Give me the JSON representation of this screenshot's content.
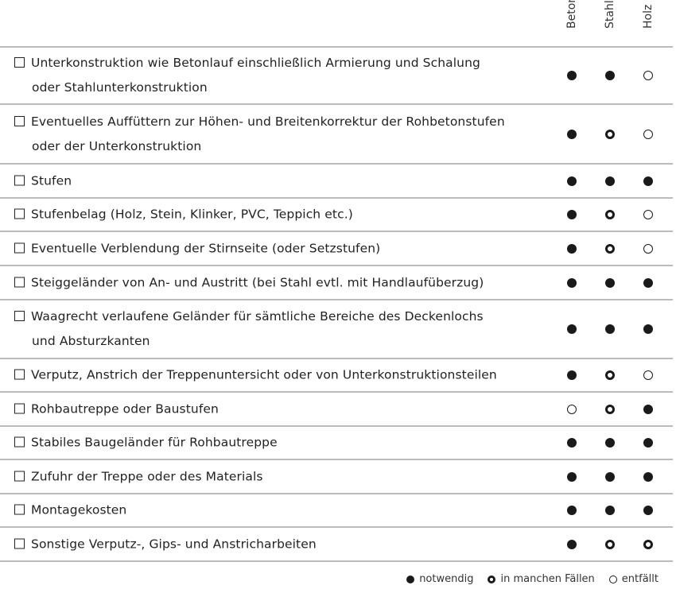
{
  "columns": [
    "Beton",
    "Stahl",
    "Holz"
  ],
  "colors": {
    "mark": "#1a1a1a",
    "rule": "#bbbbbb"
  },
  "rows": [
    {
      "lines": [
        "Unterkonstruktion wie Betonlauf einschließlich Armierung und Schalung",
        "oder Stahlunterkonstruktion"
      ],
      "marks": [
        "notwendig",
        "notwendig",
        "entfällt"
      ]
    },
    {
      "lines": [
        "Eventuelles Auffüttern zur Höhen- und Breitenkorrektur der Rohbetonstufen",
        "oder der Unterkonstruktion"
      ],
      "marks": [
        "notwendig",
        "in manchen Fällen",
        "entfällt"
      ]
    },
    {
      "lines": [
        "Stufen"
      ],
      "marks": [
        "notwendig",
        "notwendig",
        "notwendig"
      ]
    },
    {
      "lines": [
        "Stufenbelag (Holz, Stein, Klinker, PVC, Teppich etc.)"
      ],
      "marks": [
        "notwendig",
        "in manchen Fällen",
        "entfällt"
      ]
    },
    {
      "lines": [
        "Eventuelle Verblendung der Stirnseite (oder Setzstufen)"
      ],
      "marks": [
        "notwendig",
        "in manchen Fällen",
        "entfällt"
      ]
    },
    {
      "lines": [
        "Steiggeländer von An- und Austritt (bei Stahl evtl. mit Handlaufüberzug)"
      ],
      "marks": [
        "notwendig",
        "notwendig",
        "notwendig"
      ]
    },
    {
      "lines": [
        "Waagrecht verlaufene Geländer für sämtliche Bereiche des Deckenlochs",
        "und Absturzkanten"
      ],
      "marks": [
        "notwendig",
        "notwendig",
        "notwendig"
      ]
    },
    {
      "lines": [
        "Verputz, Anstrich der Treppenuntersicht oder von Unterkonstruktionsteilen"
      ],
      "marks": [
        "notwendig",
        "in manchen Fällen",
        "entfällt"
      ]
    },
    {
      "lines": [
        "Rohbautreppe oder Baustufen"
      ],
      "marks": [
        "entfällt",
        "in manchen Fällen",
        "notwendig"
      ]
    },
    {
      "lines": [
        "Stabiles Baugeländer für Rohbautreppe"
      ],
      "marks": [
        "notwendig",
        "notwendig",
        "notwendig"
      ]
    },
    {
      "lines": [
        "Zufuhr der Treppe oder des Materials"
      ],
      "marks": [
        "notwendig",
        "notwendig",
        "notwendig"
      ]
    },
    {
      "lines": [
        "Montagekosten"
      ],
      "marks": [
        "notwendig",
        "notwendig",
        "notwendig"
      ]
    },
    {
      "lines": [
        "Sonstige Verputz-, Gips- und Anstricharbeiten"
      ],
      "marks": [
        "notwendig",
        "in manchen Fällen",
        "in manchen Fällen"
      ]
    }
  ],
  "legend": [
    {
      "key": "notwendig",
      "label": "notwendig",
      "icon": "filled-circle"
    },
    {
      "key": "in manchen Fällen",
      "label": "in manchen Fällen",
      "icon": "thick-ring"
    },
    {
      "key": "entfällt",
      "label": "entfällt",
      "icon": "thin-ring"
    }
  ]
}
